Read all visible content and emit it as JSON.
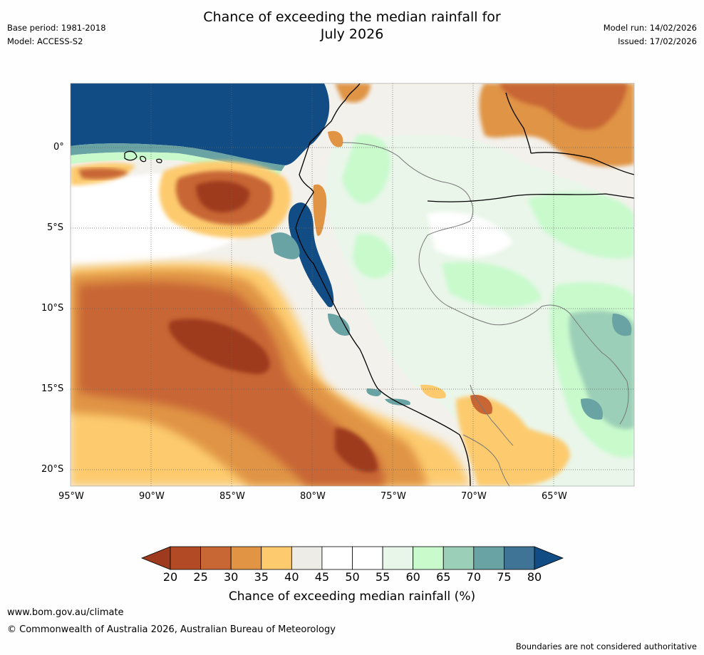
{
  "header": {
    "title_line1": "Chance of exceeding the median rainfall for",
    "title_line2": "July 2026",
    "base_period": "Base period: 1981-2018",
    "model": "Model: ACCESS-S2",
    "model_run": "Model run: 14/02/2026",
    "issued": "Issued: 17/02/2026"
  },
  "axes": {
    "lat_labels": [
      "0°",
      "5°S",
      "10°S",
      "15°S",
      "20°S"
    ],
    "lon_labels": [
      "95°W",
      "90°W",
      "85°W",
      "80°W",
      "75°W",
      "70°W",
      "65°W"
    ]
  },
  "colorbar": {
    "label": "Chance of exceeding median rainfall (%)",
    "ticks": [
      "20",
      "25",
      "30",
      "35",
      "40",
      "45",
      "50",
      "55",
      "60",
      "65",
      "70",
      "75",
      "80"
    ],
    "colors": [
      "#9e3a1e",
      "#b24a25",
      "#c86634",
      "#e09444",
      "#fdcb6e",
      "#eeece6",
      "#ffffff",
      "#ffffff",
      "#e8f5e9",
      "#c8facc",
      "#9ccfb7",
      "#6aa3a4",
      "#3f7496",
      "#114d84"
    ]
  },
  "footer": {
    "url": "www.bom.gov.au/climate",
    "copyright": "© Commonwealth of Australia 2026, Australian Bureau of Meteorology",
    "disclaimer": "Boundaries are not considered authoritative"
  }
}
